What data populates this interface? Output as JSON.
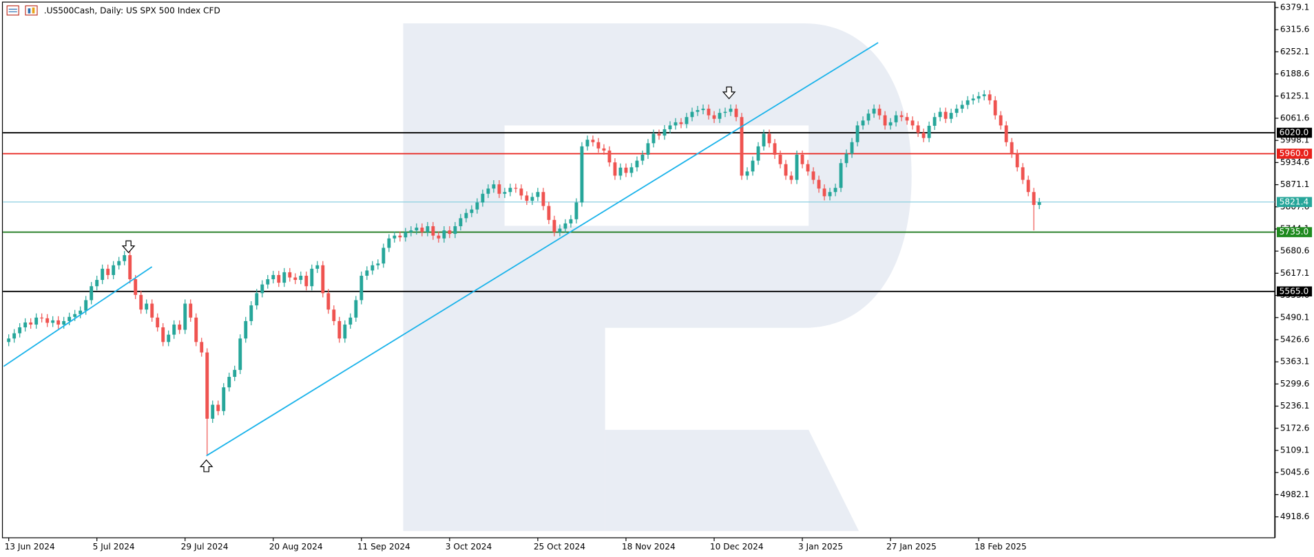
{
  "chart_data": {
    "type": "candlestick",
    "title": ".US500Cash, Daily:  US SPX 500 Index CFD",
    "categories": [
      "13 Jun 2024",
      null,
      null,
      null,
      null,
      null,
      null,
      null,
      null,
      null,
      null,
      null,
      null,
      null,
      null,
      null,
      "5 Jul 2024",
      null,
      null,
      null,
      null,
      null,
      null,
      null,
      null,
      null,
      null,
      null,
      null,
      null,
      null,
      null,
      "29 Jul 2024",
      null,
      null,
      null,
      null,
      null,
      null,
      null,
      null,
      null,
      null,
      null,
      null,
      null,
      null,
      null,
      "20 Aug 2024",
      null,
      null,
      null,
      null,
      null,
      null,
      null,
      null,
      null,
      null,
      null,
      null,
      null,
      null,
      null,
      "11 Sep 2024",
      null,
      null,
      null,
      null,
      null,
      null,
      null,
      null,
      null,
      null,
      null,
      null,
      null,
      null,
      null,
      "3 Oct 2024",
      null,
      null,
      null,
      null,
      null,
      null,
      null,
      null,
      null,
      null,
      null,
      null,
      null,
      null,
      null,
      "25 Oct 2024",
      null,
      null,
      null,
      null,
      null,
      null,
      null,
      null,
      null,
      null,
      null,
      null,
      null,
      null,
      null,
      "18 Nov 2024",
      null,
      null,
      null,
      null,
      null,
      null,
      null,
      null,
      null,
      null,
      null,
      null,
      null,
      null,
      null,
      "10 Dec 2024",
      null,
      null,
      null,
      null,
      null,
      null,
      null,
      null,
      null,
      null,
      null,
      null,
      null,
      null,
      null,
      "3 Jan 2025",
      null,
      null,
      null,
      null,
      null,
      null,
      null,
      null,
      null,
      null,
      null,
      null,
      null,
      null,
      null,
      "27 Jan 2025",
      null,
      null,
      null,
      null,
      null,
      null,
      null,
      null,
      null,
      null,
      null,
      null,
      null,
      null,
      null,
      "18 Feb 2025",
      null,
      null,
      null,
      null,
      null,
      null,
      null,
      null,
      null,
      null,
      null
    ],
    "open": [
      5420,
      5430,
      5445,
      5462,
      5476,
      5470,
      5490,
      5488,
      5475,
      5482,
      5470,
      5480,
      5492,
      5500,
      5510,
      5540,
      5580,
      5598,
      5630,
      5612,
      5640,
      5652,
      5669,
      5600,
      5555,
      5513,
      5530,
      5490,
      5462,
      5420,
      5441,
      5470,
      5455,
      5530,
      5490,
      5420,
      5390,
      5200,
      5240,
      5222,
      5290,
      5320,
      5340,
      5430,
      5480,
      5525,
      5560,
      5585,
      5600,
      5612,
      5590,
      5620,
      5605,
      5598,
      5610,
      5580,
      5630,
      5640,
      5560,
      5513,
      5480,
      5430,
      5470,
      5490,
      5540,
      5610,
      5625,
      5640,
      5645,
      5690,
      5717,
      5725,
      5720,
      5735,
      5740,
      5748,
      5735,
      5752,
      5725,
      5717,
      5740,
      5730,
      5752,
      5775,
      5790,
      5800,
      5820,
      5845,
      5860,
      5872,
      5845,
      5850,
      5862,
      5860,
      5840,
      5825,
      5836,
      5850,
      5810,
      5770,
      5735,
      5745,
      5760,
      5772,
      5820,
      5981,
      6000,
      5993,
      5975,
      5969,
      5935,
      5897,
      5920,
      5905,
      5921,
      5940,
      5957,
      5990,
      6017,
      6012,
      6030,
      6041,
      6050,
      6045,
      6065,
      6080,
      6085,
      6089,
      6070,
      6060,
      6077,
      6080,
      6089,
      6065,
      5897,
      5909,
      5940,
      5981,
      6017,
      5990,
      5957,
      5930,
      5897,
      5885,
      5957,
      5930,
      5909,
      5885,
      5860,
      5838,
      5850,
      5862,
      5933,
      5960,
      5993,
      6041,
      6055,
      6075,
      6089,
      6070,
      6041,
      6050,
      6070,
      6065,
      6055,
      6041,
      6020,
      6005,
      6040,
      6065,
      6080,
      6060,
      6077,
      6089,
      6100,
      6113,
      6118,
      6125,
      6130,
      6113,
      6070,
      6041,
      5993,
      5960,
      5921,
      5885,
      5850,
      5813
    ],
    "high": [
      5442,
      5457,
      5474,
      5488,
      5488,
      5502,
      5502,
      5500,
      5494,
      5494,
      5492,
      5504,
      5512,
      5522,
      5552,
      5592,
      5610,
      5642,
      5642,
      5652,
      5664,
      5681,
      5681,
      5612,
      5567,
      5542,
      5542,
      5502,
      5474,
      5453,
      5482,
      5482,
      5542,
      5542,
      5502,
      5432,
      5402,
      5252,
      5252,
      5302,
      5332,
      5352,
      5442,
      5492,
      5537,
      5572,
      5597,
      5612,
      5624,
      5624,
      5632,
      5632,
      5617,
      5622,
      5622,
      5642,
      5652,
      5652,
      5572,
      5525,
      5492,
      5482,
      5502,
      5552,
      5622,
      5637,
      5652,
      5657,
      5702,
      5729,
      5737,
      5737,
      5747,
      5752,
      5760,
      5760,
      5764,
      5764,
      5737,
      5752,
      5752,
      5764,
      5787,
      5802,
      5812,
      5832,
      5857,
      5872,
      5884,
      5884,
      5862,
      5874,
      5874,
      5872,
      5852,
      5848,
      5862,
      5862,
      5822,
      5782,
      5757,
      5772,
      5784,
      5832,
      5993,
      6012,
      6012,
      6005,
      5987,
      5981,
      5947,
      5932,
      5932,
      5933,
      5952,
      5969,
      6002,
      6029,
      6029,
      6042,
      6053,
      6062,
      6062,
      6077,
      6092,
      6097,
      6101,
      6101,
      6082,
      6089,
      6092,
      6101,
      6101,
      6077,
      5921,
      5952,
      5993,
      6029,
      6029,
      6002,
      5969,
      5942,
      5909,
      5969,
      5969,
      5942,
      5921,
      5897,
      5872,
      5862,
      5874,
      5945,
      5972,
      6005,
      6053,
      6067,
      6087,
      6101,
      6101,
      6082,
      6062,
      6082,
      6082,
      6077,
      6067,
      6053,
      6032,
      6052,
      6077,
      6092,
      6092,
      6089,
      6101,
      6112,
      6125,
      6130,
      6137,
      6142,
      6142,
      6125,
      6082,
      6053,
      6005,
      5972,
      5933,
      5897,
      5862,
      5833
    ],
    "low": [
      5408,
      5418,
      5433,
      5450,
      5458,
      5458,
      5476,
      5463,
      5463,
      5458,
      5458,
      5468,
      5480,
      5488,
      5498,
      5528,
      5568,
      5586,
      5600,
      5600,
      5628,
      5640,
      5588,
      5543,
      5501,
      5501,
      5478,
      5450,
      5408,
      5408,
      5429,
      5443,
      5443,
      5478,
      5408,
      5378,
      5095,
      5188,
      5210,
      5210,
      5278,
      5308,
      5328,
      5418,
      5468,
      5513,
      5548,
      5573,
      5588,
      5578,
      5578,
      5593,
      5586,
      5586,
      5568,
      5568,
      5618,
      5548,
      5501,
      5468,
      5418,
      5418,
      5458,
      5478,
      5528,
      5598,
      5613,
      5628,
      5633,
      5678,
      5705,
      5708,
      5708,
      5723,
      5728,
      5723,
      5723,
      5713,
      5705,
      5705,
      5718,
      5718,
      5740,
      5763,
      5778,
      5788,
      5808,
      5833,
      5848,
      5833,
      5833,
      5838,
      5848,
      5828,
      5813,
      5813,
      5824,
      5798,
      5758,
      5723,
      5723,
      5733,
      5748,
      5760,
      5808,
      5969,
      5981,
      5963,
      5957,
      5923,
      5885,
      5885,
      5893,
      5893,
      5909,
      5928,
      5945,
      5978,
      6000,
      6000,
      6018,
      6029,
      6033,
      6033,
      6053,
      6068,
      6073,
      6058,
      6048,
      6048,
      6065,
      6068,
      6053,
      5885,
      5885,
      5897,
      5928,
      5969,
      5978,
      5945,
      5918,
      5885,
      5873,
      5873,
      5918,
      5897,
      5873,
      5848,
      5826,
      5826,
      5838,
      5850,
      5921,
      5948,
      5981,
      6029,
      6043,
      6063,
      6058,
      6029,
      6029,
      6038,
      6053,
      6043,
      6029,
      6008,
      5993,
      5993,
      6028,
      6053,
      6048,
      6048,
      6065,
      6077,
      6088,
      6101,
      6106,
      6113,
      6101,
      6058,
      6029,
      5981,
      5948,
      5909,
      5873,
      5838,
      5740,
      5801
    ],
    "close": [
      5430,
      5445,
      5462,
      5476,
      5470,
      5490,
      5488,
      5475,
      5482,
      5470,
      5480,
      5492,
      5500,
      5510,
      5540,
      5580,
      5598,
      5630,
      5612,
      5640,
      5652,
      5669,
      5600,
      5555,
      5513,
      5530,
      5490,
      5462,
      5420,
      5441,
      5470,
      5455,
      5530,
      5490,
      5420,
      5390,
      5200,
      5240,
      5222,
      5290,
      5320,
      5340,
      5430,
      5480,
      5525,
      5560,
      5585,
      5600,
      5612,
      5590,
      5620,
      5605,
      5598,
      5610,
      5580,
      5630,
      5640,
      5560,
      5513,
      5480,
      5430,
      5470,
      5490,
      5540,
      5610,
      5625,
      5640,
      5645,
      5690,
      5717,
      5725,
      5720,
      5735,
      5740,
      5748,
      5735,
      5752,
      5725,
      5717,
      5740,
      5730,
      5752,
      5775,
      5790,
      5800,
      5820,
      5845,
      5860,
      5872,
      5845,
      5850,
      5862,
      5860,
      5840,
      5825,
      5836,
      5850,
      5810,
      5770,
      5735,
      5745,
      5760,
      5772,
      5820,
      5981,
      6000,
      5993,
      5975,
      5969,
      5935,
      5897,
      5920,
      5905,
      5921,
      5940,
      5957,
      5990,
      6017,
      6012,
      6030,
      6041,
      6050,
      6045,
      6065,
      6080,
      6085,
      6089,
      6070,
      6060,
      6077,
      6080,
      6089,
      6065,
      5897,
      5909,
      5940,
      5981,
      6017,
      5990,
      5957,
      5930,
      5897,
      5885,
      5957,
      5930,
      5909,
      5885,
      5860,
      5838,
      5850,
      5862,
      5933,
      5960,
      5993,
      6041,
      6055,
      6075,
      6089,
      6070,
      6041,
      6050,
      6070,
      6065,
      6055,
      6041,
      6020,
      6005,
      6040,
      6065,
      6080,
      6060,
      6077,
      6089,
      6100,
      6113,
      6118,
      6125,
      6130,
      6113,
      6070,
      6041,
      5993,
      5960,
      5921,
      5885,
      5850,
      5813,
      5821
    ],
    "up_color": "#26a69a",
    "down_color": "#ef5350",
    "ylim": [
      4858.6,
      6395.9
    ],
    "yticks": [
      6379.1,
      6315.6,
      6252.1,
      6188.6,
      6125.1,
      6061.6,
      5998.1,
      5934.6,
      5871.1,
      5807.6,
      5744.1,
      5680.6,
      5617.1,
      5553.6,
      5490.1,
      5426.6,
      5363.1,
      5299.6,
      5236.1,
      5172.6,
      5109.1,
      5045.6,
      4982.1,
      4918.6
    ],
    "levels": [
      {
        "value": 6020,
        "label": "6020.0",
        "color": "#000000",
        "line_color": "#000000"
      },
      {
        "value": 5960,
        "label": "5960.0",
        "color": "#e8201a",
        "line_color": "#e8201a"
      },
      {
        "value": 5821.4,
        "label": "5821.4",
        "color": "#26a69a",
        "line_color": "#8ccfe0"
      },
      {
        "value": 5735,
        "label": "5735.0",
        "color": "#1f8a1f",
        "line_color": "#1f7a1f"
      },
      {
        "value": 5565,
        "label": "5565.0",
        "color": "#000000",
        "line_color": "#000000"
      }
    ]
  }
}
